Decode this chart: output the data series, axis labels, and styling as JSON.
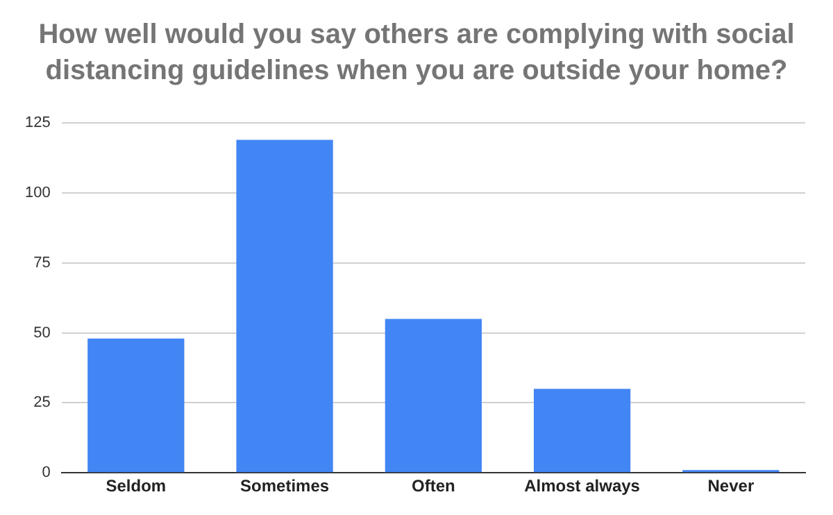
{
  "chart_data": {
    "type": "bar",
    "title": "How well would you say others are complying with social distancing guidelines when you are outside your home?",
    "categories": [
      "Seldom",
      "Sometimes",
      "Often",
      "Almost always",
      "Never"
    ],
    "values": [
      48,
      119,
      55,
      30,
      1
    ],
    "color": "#4285f4",
    "ylim": [
      0,
      125
    ],
    "yticks": [
      0,
      25,
      50,
      75,
      100,
      125
    ],
    "grid": "y"
  }
}
